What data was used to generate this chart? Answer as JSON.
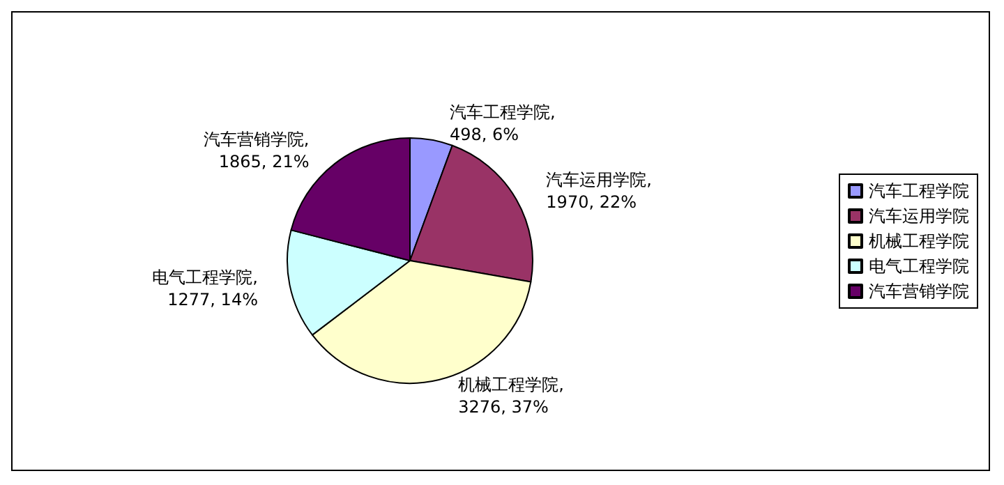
{
  "chart_data": {
    "type": "pie",
    "categories": [
      "汽车工程学院",
      "汽车运用学院",
      "机械工程学院",
      "电气工程学院",
      "汽车营销学院"
    ],
    "values": [
      498,
      1970,
      3276,
      1277,
      1865
    ],
    "colors": [
      "#9999ff",
      "#993366",
      "#ffffcc",
      "#ccffff",
      "#660066"
    ],
    "data_labels": true,
    "value_labels": [
      "汽车工程学院,\n498, 6%",
      "汽车运用学院,\n1970, 22%",
      "机械工程学院,\n3276, 37%",
      "电气工程学院,\n1277, 14%",
      "汽车营销学院,\n1865, 21%"
    ],
    "legend": "right"
  }
}
